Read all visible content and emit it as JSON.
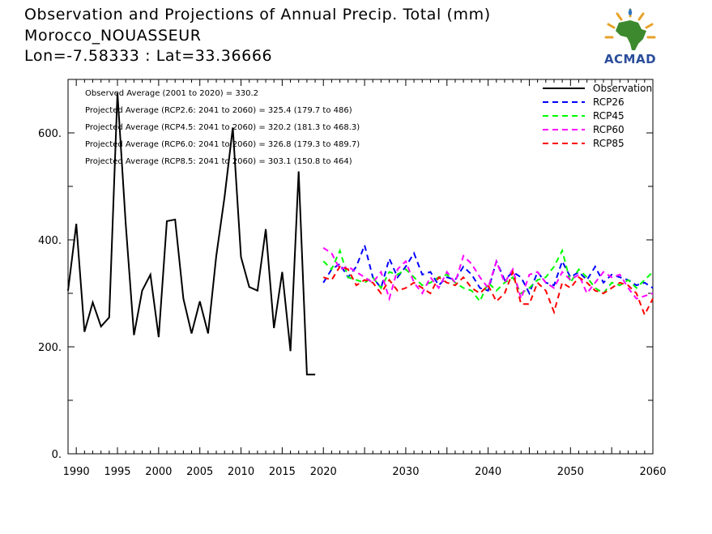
{
  "header": {
    "title_line1": "Observation and Projections of Annual Precip. Total (mm)",
    "title_line2": "Morocco_NOUASSEUR",
    "title_line3": "Lon=-7.58333 : Lat=33.36666"
  },
  "logo": {
    "text": "ACMAD",
    "icon": "africa-map-logo-icon"
  },
  "chart_data": {
    "type": "line",
    "xlim": [
      1989,
      2060
    ],
    "ylim": [
      0,
      700
    ],
    "yticks": [
      0,
      200,
      400,
      600
    ],
    "ytick_labels": [
      "0.",
      "200.",
      "400.",
      "600."
    ],
    "xticks": [
      1990,
      1995,
      2000,
      2005,
      2010,
      2015,
      2020,
      2030,
      2040,
      2050,
      2060
    ],
    "xtick_labels": [
      "1990",
      "1995",
      "2000",
      "2005",
      "2010",
      "2015",
      "2020",
      "2030",
      "2040",
      "2050",
      "2060"
    ],
    "annotations": [
      "Observed Average (2001 to 2020) = 330.2",
      "Projected Average (RCP2.6: 2041 to 2060) = 325.4 (179.7 to 486)",
      "Projected Average (RCP4.5: 2041 to 2060) = 320.2 (181.3 to 468.3)",
      "Projected Average (RCP6.0: 2041 to 2060) = 326.8 (179.3 to 489.7)",
      "Projected Average (RCP8.5: 2041 to 2060) = 303.1 (150.8 to 464)"
    ],
    "legend_position": "top-right",
    "series": [
      {
        "name": "Observation",
        "color": "#000000",
        "dash": "solid",
        "x": [
          1989,
          1990,
          1991,
          1992,
          1993,
          1994,
          1995,
          1996,
          1997,
          1998,
          1999,
          2000,
          2001,
          2002,
          2003,
          2004,
          2005,
          2006,
          2007,
          2008,
          2009,
          2010,
          2011,
          2012,
          2013,
          2014,
          2015,
          2016,
          2017,
          2018,
          2019
        ],
        "y": [
          305,
          430,
          228,
          283,
          238,
          255,
          675,
          430,
          222,
          305,
          335,
          218,
          435,
          438,
          290,
          225,
          285,
          225,
          370,
          480,
          610,
          368,
          312,
          305,
          420,
          235,
          340,
          192,
          528,
          148,
          148
        ]
      },
      {
        "name": "RCP26",
        "color": "#0000ff",
        "dash": "dashed",
        "x": [
          2020,
          2021,
          2022,
          2023,
          2024,
          2025,
          2026,
          2027,
          2028,
          2029,
          2030,
          2031,
          2032,
          2033,
          2034,
          2035,
          2036,
          2037,
          2038,
          2039,
          2040,
          2041,
          2042,
          2043,
          2044,
          2045,
          2046,
          2047,
          2048,
          2049,
          2050,
          2051,
          2052,
          2053,
          2054,
          2055,
          2056,
          2057,
          2058,
          2059,
          2060
        ],
        "y": [
          320,
          345,
          355,
          330,
          350,
          390,
          330,
          310,
          365,
          330,
          350,
          375,
          335,
          340,
          315,
          330,
          325,
          350,
          335,
          310,
          305,
          360,
          325,
          340,
          330,
          300,
          340,
          320,
          315,
          360,
          330,
          340,
          325,
          350,
          320,
          335,
          330,
          325,
          315,
          320,
          310
        ]
      },
      {
        "name": "RCP45",
        "color": "#00ff00",
        "dash": "dashed",
        "x": [
          2020,
          2021,
          2022,
          2023,
          2024,
          2025,
          2026,
          2027,
          2028,
          2029,
          2030,
          2031,
          2032,
          2033,
          2034,
          2035,
          2036,
          2037,
          2038,
          2039,
          2040,
          2041,
          2042,
          2043,
          2044,
          2045,
          2046,
          2047,
          2048,
          2049,
          2050,
          2051,
          2052,
          2053,
          2054,
          2055,
          2056,
          2057,
          2058,
          2059,
          2060
        ],
        "y": [
          360,
          345,
          380,
          330,
          325,
          320,
          330,
          310,
          340,
          335,
          345,
          330,
          315,
          320,
          330,
          335,
          320,
          310,
          305,
          285,
          320,
          305,
          320,
          330,
          300,
          310,
          325,
          330,
          350,
          380,
          320,
          345,
          330,
          310,
          300,
          320,
          315,
          325,
          310,
          325,
          340
        ]
      },
      {
        "name": "RCP60",
        "color": "#ff00ff",
        "dash": "dashed",
        "x": [
          2020,
          2021,
          2022,
          2023,
          2024,
          2025,
          2026,
          2027,
          2028,
          2029,
          2030,
          2031,
          2032,
          2033,
          2034,
          2035,
          2036,
          2037,
          2038,
          2039,
          2040,
          2041,
          2042,
          2043,
          2044,
          2045,
          2046,
          2047,
          2048,
          2049,
          2050,
          2051,
          2052,
          2053,
          2054,
          2055,
          2056,
          2057,
          2058,
          2059,
          2060
        ],
        "y": [
          385,
          375,
          345,
          350,
          340,
          330,
          320,
          340,
          290,
          345,
          360,
          320,
          300,
          330,
          310,
          340,
          320,
          370,
          355,
          330,
          310,
          360,
          320,
          345,
          290,
          335,
          340,
          320,
          310,
          340,
          325,
          335,
          300,
          320,
          340,
          330,
          335,
          310,
          290,
          295,
          300
        ]
      },
      {
        "name": "RCP85",
        "color": "#ff0000",
        "dash": "dashed",
        "x": [
          2020,
          2021,
          2022,
          2023,
          2024,
          2025,
          2026,
          2027,
          2028,
          2029,
          2030,
          2031,
          2032,
          2033,
          2034,
          2035,
          2036,
          2037,
          2038,
          2039,
          2040,
          2041,
          2042,
          2043,
          2044,
          2045,
          2046,
          2047,
          2048,
          2049,
          2050,
          2051,
          2052,
          2053,
          2054,
          2055,
          2056,
          2057,
          2058,
          2059,
          2060
        ],
        "y": [
          330,
          325,
          350,
          345,
          315,
          325,
          320,
          300,
          325,
          305,
          310,
          320,
          310,
          300,
          330,
          320,
          315,
          330,
          310,
          300,
          315,
          285,
          300,
          340,
          280,
          280,
          320,
          305,
          265,
          320,
          310,
          330,
          320,
          305,
          300,
          310,
          320,
          315,
          300,
          260,
          290
        ]
      }
    ]
  }
}
